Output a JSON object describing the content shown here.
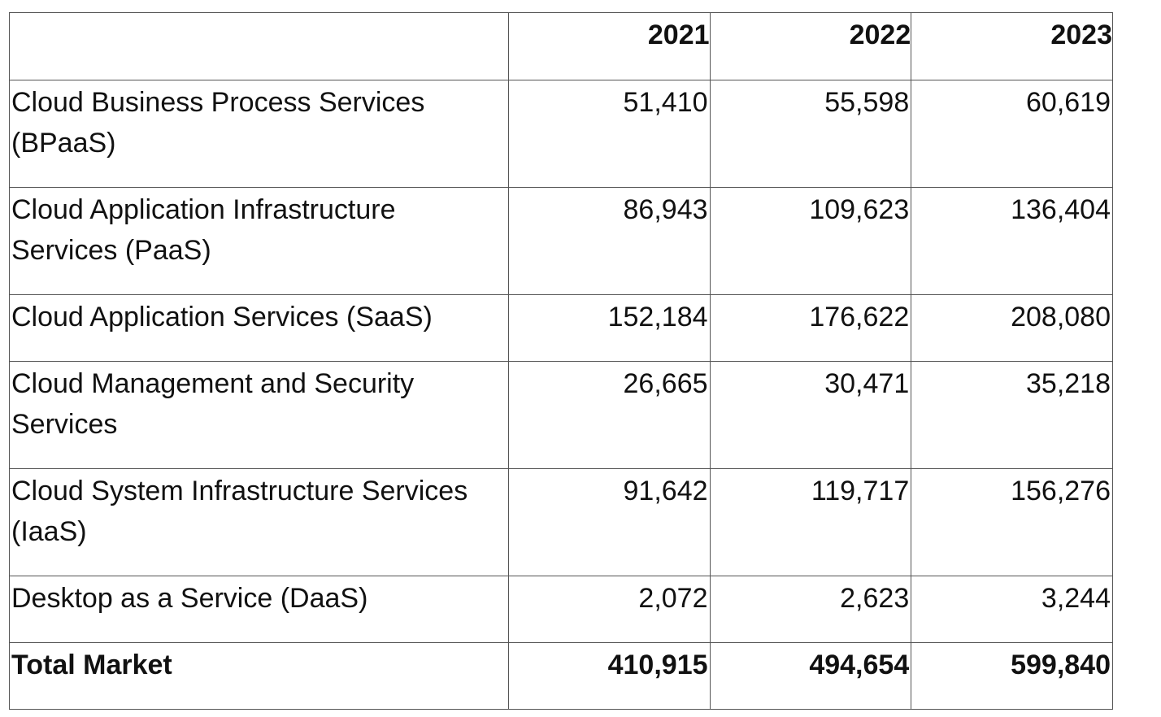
{
  "chart_data": {
    "type": "table",
    "columns": [
      "",
      "2021",
      "2022",
      "2023"
    ],
    "rows": [
      {
        "label": "Cloud Business Process Services (BPaaS)",
        "values": [
          "51,410",
          "55,598",
          "60,619"
        ]
      },
      {
        "label": "Cloud Application Infrastructure Services (PaaS)",
        "values": [
          "86,943",
          "109,623",
          "136,404"
        ]
      },
      {
        "label": "Cloud Application Services (SaaS)",
        "values": [
          "152,184",
          "176,622",
          "208,080"
        ]
      },
      {
        "label": "Cloud Management and Security Services",
        "values": [
          "26,665",
          "30,471",
          "35,218"
        ]
      },
      {
        "label": "Cloud System Infrastructure Services (IaaS)",
        "values": [
          "91,642",
          "119,717",
          "156,276"
        ]
      },
      {
        "label": "Desktop as a Service (DaaS)",
        "values": [
          "2,072",
          "2,623",
          "3,244"
        ]
      },
      {
        "label": "Total Market",
        "values": [
          "410,915",
          "494,654",
          "599,840"
        ]
      }
    ]
  }
}
